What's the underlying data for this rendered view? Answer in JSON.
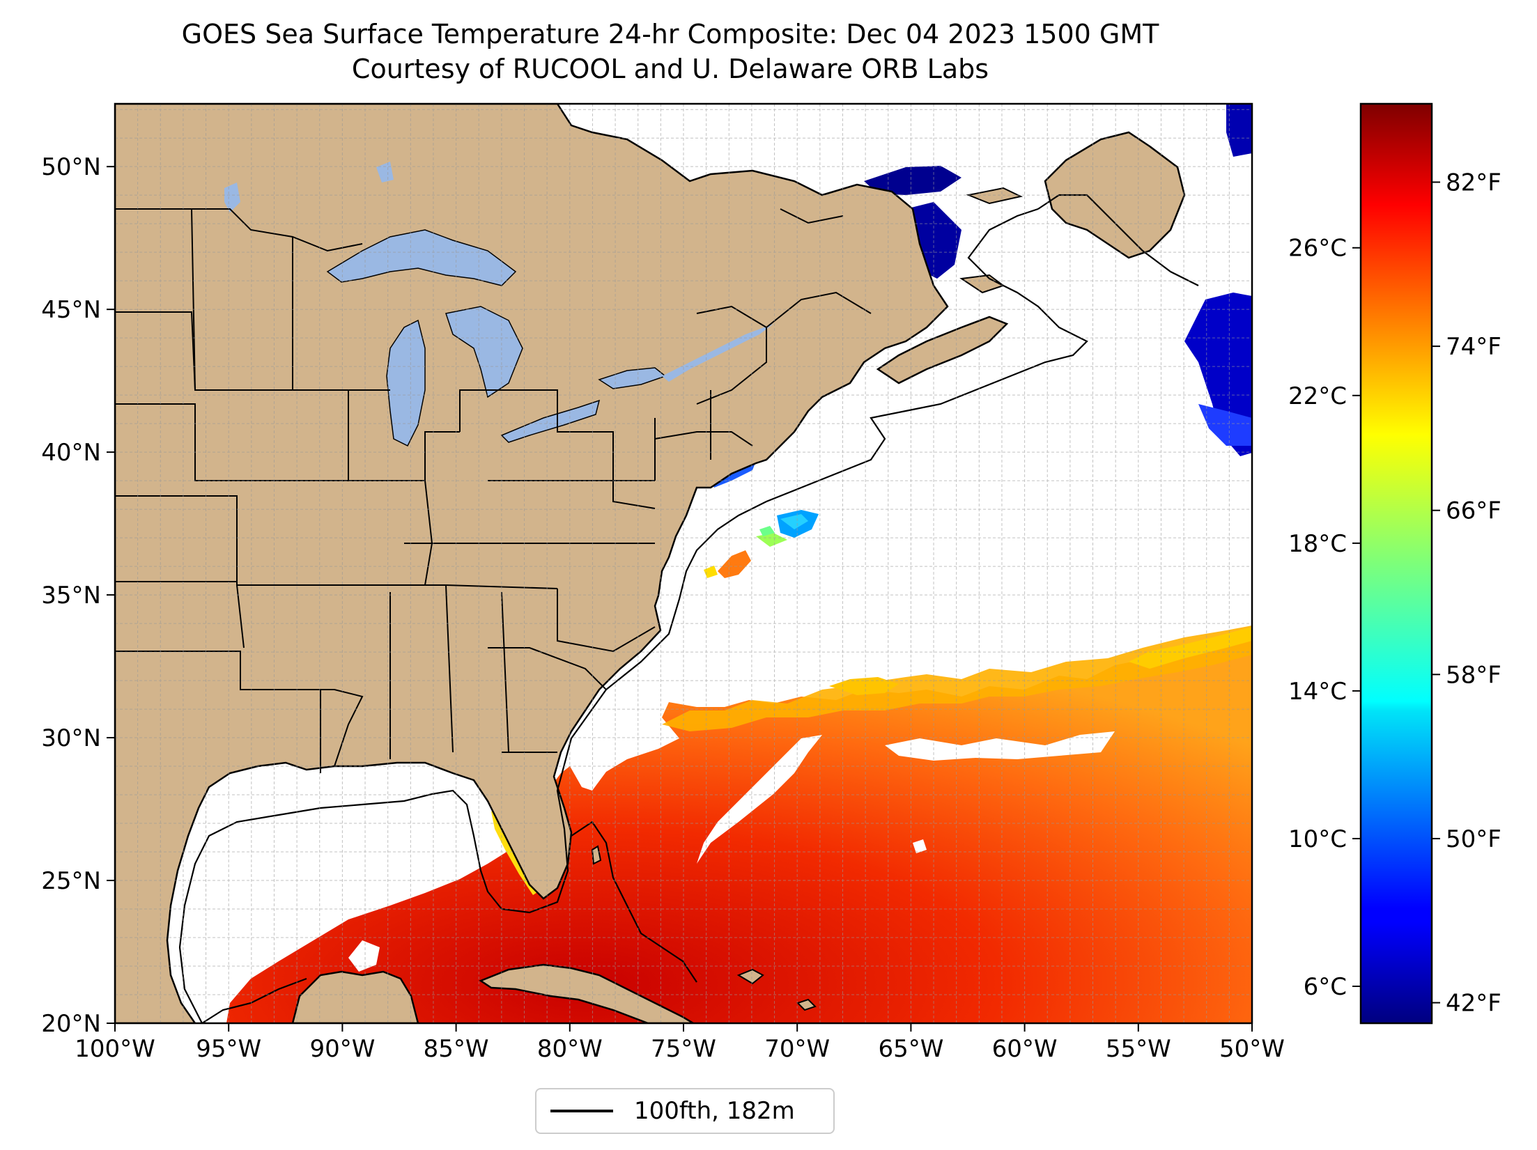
{
  "title": {
    "line1": "GOES Sea Surface Temperature 24-hr Composite: Dec 04 2023 1500 GMT",
    "line2": "Courtesy of RUCOOL and U. Delaware ORB Labs"
  },
  "map": {
    "lon_range": [
      -100,
      -50
    ],
    "lat_range": [
      20,
      52.2
    ],
    "lon_ticks": [
      {
        "value": -100,
        "label": "100°W"
      },
      {
        "value": -95,
        "label": "95°W"
      },
      {
        "value": -90,
        "label": "90°W"
      },
      {
        "value": -85,
        "label": "85°W"
      },
      {
        "value": -80,
        "label": "80°W"
      },
      {
        "value": -75,
        "label": "75°W"
      },
      {
        "value": -70,
        "label": "70°W"
      },
      {
        "value": -65,
        "label": "65°W"
      },
      {
        "value": -60,
        "label": "60°W"
      },
      {
        "value": -55,
        "label": "55°W"
      },
      {
        "value": -50,
        "label": "50°W"
      }
    ],
    "lat_ticks": [
      {
        "value": 20,
        "label": "20°N"
      },
      {
        "value": 25,
        "label": "25°N"
      },
      {
        "value": 30,
        "label": "30°N"
      },
      {
        "value": 35,
        "label": "35°N"
      },
      {
        "value": 40,
        "label": "40°N"
      },
      {
        "value": 45,
        "label": "45°N"
      },
      {
        "value": 50,
        "label": "50°N"
      }
    ],
    "grid": true,
    "land_color": "#d2b48c",
    "lake_color": "#9ab8e3",
    "ocean_no_data_color": "#ffffff"
  },
  "colorbar": {
    "colormap": "jet",
    "range_c": [
      5.0,
      29.9
    ],
    "celsius_ticks": [
      {
        "value": 6,
        "label": "6°C"
      },
      {
        "value": 10,
        "label": "10°C"
      },
      {
        "value": 14,
        "label": "14°C"
      },
      {
        "value": 18,
        "label": "18°C"
      },
      {
        "value": 22,
        "label": "22°C"
      },
      {
        "value": 26,
        "label": "26°C"
      }
    ],
    "fahrenheit_ticks": [
      {
        "value": 42,
        "label": "42°F"
      },
      {
        "value": 50,
        "label": "50°F"
      },
      {
        "value": 58,
        "label": "58°F"
      },
      {
        "value": 66,
        "label": "66°F"
      },
      {
        "value": 74,
        "label": "74°F"
      },
      {
        "value": 82,
        "label": "82°F"
      }
    ]
  },
  "legend": {
    "label": "100fth, 182m",
    "line_color": "#000000"
  }
}
